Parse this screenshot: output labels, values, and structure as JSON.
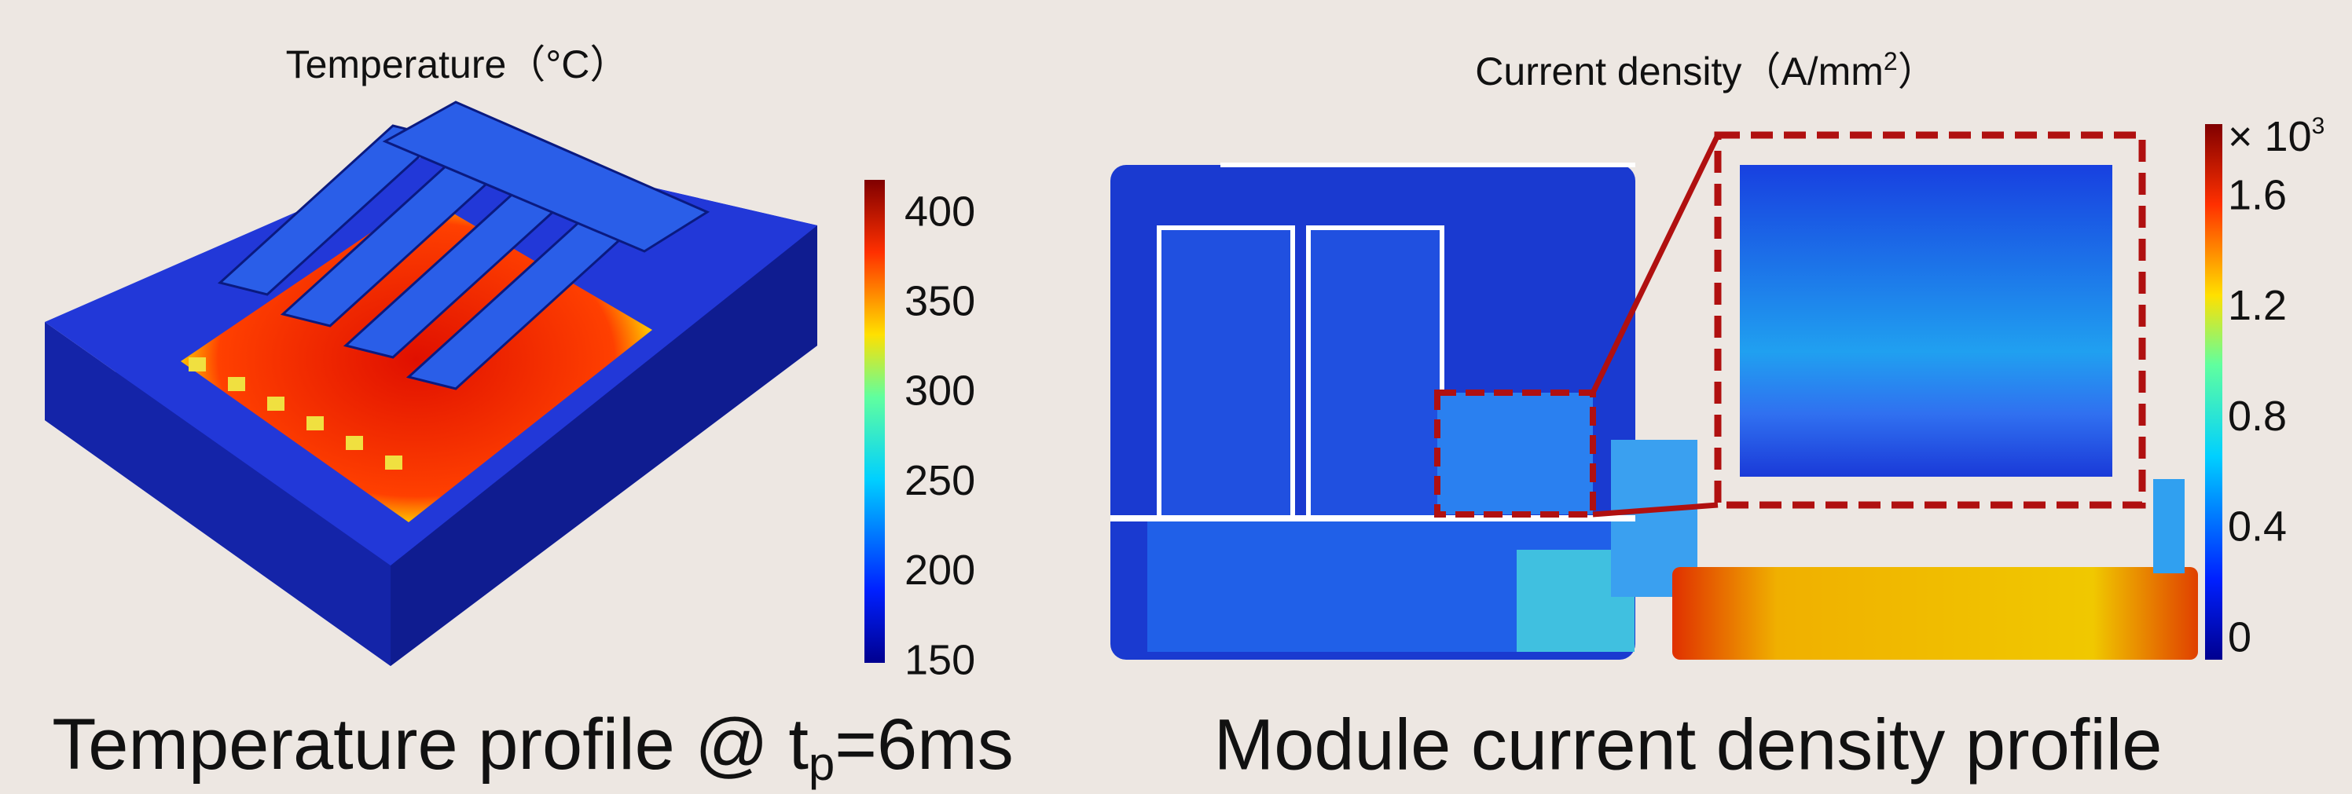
{
  "left": {
    "title": "Temperature（°C）",
    "colorbar_ticks": [
      400,
      350,
      300,
      250,
      200,
      150
    ],
    "caption": {
      "text": "Temperature profile @ t",
      "sub": "p",
      "rest": "=6ms"
    }
  },
  "right": {
    "title": {
      "text": "Current density（A/mm",
      "sup": "2",
      "rest": "）"
    },
    "multiplier": {
      "text": "× 10",
      "sup": "3"
    },
    "colorbar_ticks": [
      1.6,
      1.2,
      0.8,
      0.4,
      0
    ],
    "caption": "Module current density profile"
  }
}
